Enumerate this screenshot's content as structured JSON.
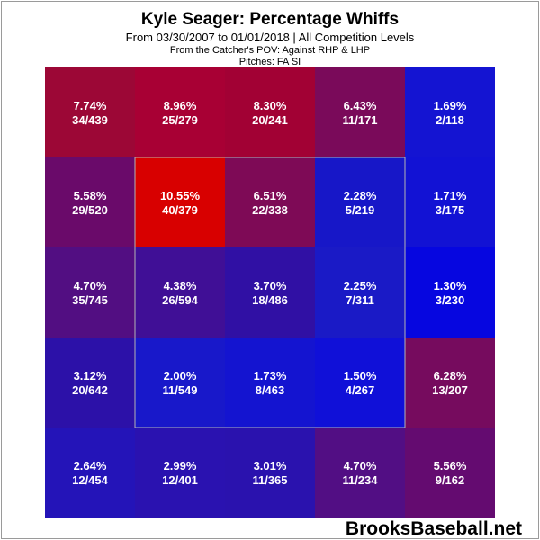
{
  "chart_data": {
    "type": "heatmap",
    "title": "Kyle Seager: Percentage Whiffs",
    "subtitle": "From 03/30/2007 to 01/01/2018 | All Competition Levels",
    "pov": "From the Catcher's POV:  Against RHP & LHP",
    "pitches": "Pitches:  FA  SI",
    "grid": "5x5",
    "strike_zone": "inner 3x3",
    "cells": [
      [
        {
          "pct": "7.74%",
          "count": "34/439",
          "color": "#9c0736"
        },
        {
          "pct": "8.96%",
          "count": "25/279",
          "color": "#a80034"
        },
        {
          "pct": "8.30%",
          "count": "20/241",
          "color": "#a20134"
        },
        {
          "pct": "6.43%",
          "count": "11/171",
          "color": "#7a0a5a"
        },
        {
          "pct": "1.69%",
          "count": "2/118",
          "color": "#1414d2"
        }
      ],
      [
        {
          "pct": "5.58%",
          "count": "29/520",
          "color": "#6a0a6a"
        },
        {
          "pct": "10.55%",
          "count": "40/379",
          "color": "#d80000"
        },
        {
          "pct": "6.51%",
          "count": "22/338",
          "color": "#7e0a56"
        },
        {
          "pct": "2.28%",
          "count": "5/219",
          "color": "#1717c8"
        },
        {
          "pct": "1.71%",
          "count": "3/175",
          "color": "#1212d4"
        }
      ],
      [
        {
          "pct": "4.70%",
          "count": "35/745",
          "color": "#520e82"
        },
        {
          "pct": "4.38%",
          "count": "26/594",
          "color": "#400f96"
        },
        {
          "pct": "3.70%",
          "count": "18/486",
          "color": "#3010a4"
        },
        {
          "pct": "2.25%",
          "count": "7/311",
          "color": "#1a1ac6"
        },
        {
          "pct": "1.30%",
          "count": "3/230",
          "color": "#0606e0"
        }
      ],
      [
        {
          "pct": "3.12%",
          "count": "20/642",
          "color": "#2c11a8"
        },
        {
          "pct": "2.00%",
          "count": "11/549",
          "color": "#1818ca"
        },
        {
          "pct": "1.73%",
          "count": "8/463",
          "color": "#1414d0"
        },
        {
          "pct": "1.50%",
          "count": "4/267",
          "color": "#1010d8"
        },
        {
          "pct": "6.28%",
          "count": "13/207",
          "color": "#760b5e"
        }
      ],
      [
        {
          "pct": "2.64%",
          "count": "12/454",
          "color": "#2414b8"
        },
        {
          "pct": "2.99%",
          "count": "12/401",
          "color": "#2a12b0"
        },
        {
          "pct": "3.01%",
          "count": "11/365",
          "color": "#2a12ae"
        },
        {
          "pct": "4.70%",
          "count": "11/234",
          "color": "#520e84"
        },
        {
          "pct": "5.56%",
          "count": "9/162",
          "color": "#640b70"
        }
      ]
    ]
  },
  "watermark": "BrooksBaseball.net"
}
